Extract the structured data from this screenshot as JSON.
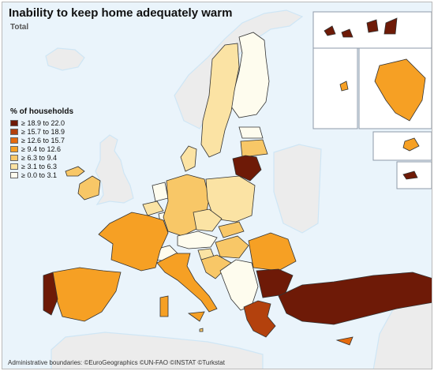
{
  "title": "Inability to keep home adequately warm",
  "subtitle": "Total",
  "legend": {
    "title": "% of households",
    "classes": [
      {
        "label": "≥ 18.9 to 22.0",
        "color": "#6e1a07"
      },
      {
        "label": "≥ 15.7 to 18.9",
        "color": "#b3410d"
      },
      {
        "label": "≥ 12.6 to 15.7",
        "color": "#e56a0d"
      },
      {
        "label": "≥ 9.4 to 12.6",
        "color": "#f6a024"
      },
      {
        "label": "≥ 6.3 to 9.4",
        "color": "#f8c767"
      },
      {
        "label": "≥ 3.1 to 6.3",
        "color": "#fbe3a4"
      },
      {
        "label": "≥ 0.0 to 3.1",
        "color": "#fefcee"
      }
    ]
  },
  "attribution": "Administrative boundaries: ©EuroGeographics ©UN-FAO ©INSTAT ©Turkstat",
  "colors": {
    "sea": "#eaf4fb",
    "non_eu_land": "#ececec",
    "coast": "#cfe6f5"
  },
  "regions": [
    {
      "name": "Iceland",
      "class": "none"
    },
    {
      "name": "Norway",
      "class": "none"
    },
    {
      "name": "Sweden",
      "class": "≥ 3.1 to 6.3"
    },
    {
      "name": "Finland",
      "class": "≥ 0.0 to 3.1"
    },
    {
      "name": "Estonia",
      "class": "≥ 0.0 to 3.1"
    },
    {
      "name": "Latvia",
      "class": "≥ 6.3 to 9.4"
    },
    {
      "name": "Lithuania",
      "class": "≥ 18.9 to 22.0"
    },
    {
      "name": "Ireland",
      "class": "≥ 6.3 to 9.4"
    },
    {
      "name": "United Kingdom",
      "class": "none"
    },
    {
      "name": "Denmark",
      "class": "≥ 3.1 to 6.3"
    },
    {
      "name": "Netherlands",
      "class": "≥ 0.0 to 3.1"
    },
    {
      "name": "Belgium",
      "class": "≥ 3.1 to 6.3"
    },
    {
      "name": "Luxembourg",
      "class": "≥ 0.0 to 3.1"
    },
    {
      "name": "France",
      "class": "≥ 9.4 to 12.6"
    },
    {
      "name": "Germany",
      "class": "≥ 6.3 to 9.4"
    },
    {
      "name": "Poland",
      "class": "≥ 3.1 to 6.3"
    },
    {
      "name": "Czechia",
      "class": "≥ 3.1 to 6.3"
    },
    {
      "name": "Slovakia",
      "class": "≥ 6.3 to 9.4"
    },
    {
      "name": "Austria",
      "class": "≥ 0.0 to 3.1"
    },
    {
      "name": "Switzerland",
      "class": "≥ 0.0 to 3.1"
    },
    {
      "name": "Hungary",
      "class": "≥ 6.3 to 9.4"
    },
    {
      "name": "Romania",
      "class": "≥ 9.4 to 12.6"
    },
    {
      "name": "Slovenia",
      "class": "≥ 3.1 to 6.3"
    },
    {
      "name": "Croatia",
      "class": "≥ 6.3 to 9.4"
    },
    {
      "name": "Western Balkans",
      "class": "≥ 0.0 to 3.1"
    },
    {
      "name": "Bulgaria",
      "class": "≥ 18.9 to 22.0"
    },
    {
      "name": "Greece",
      "class": "≥ 15.7 to 18.9"
    },
    {
      "name": "Turkey",
      "class": "≥ 18.9 to 22.0"
    },
    {
      "name": "Spain",
      "class": "≥ 9.4 to 12.6"
    },
    {
      "name": "Portugal",
      "class": "≥ 18.9 to 22.0"
    },
    {
      "name": "Italy",
      "class": "≥ 9.4 to 12.6"
    },
    {
      "name": "Cyprus",
      "class": "≥ 12.6 to 15.7"
    },
    {
      "name": "Malta",
      "class": "≥ 6.3 to 9.4"
    },
    {
      "name": "Canary Islands",
      "class": "≥ 18.9 to 22.0"
    },
    {
      "name": "Guadeloupe",
      "class": "≥ 9.4 to 12.6"
    },
    {
      "name": "French Guiana",
      "class": "≥ 9.4 to 12.6"
    },
    {
      "name": "Réunion",
      "class": "≥ 9.4 to 12.6"
    },
    {
      "name": "Madeira",
      "class": "≥ 18.9 to 22.0"
    }
  ]
}
